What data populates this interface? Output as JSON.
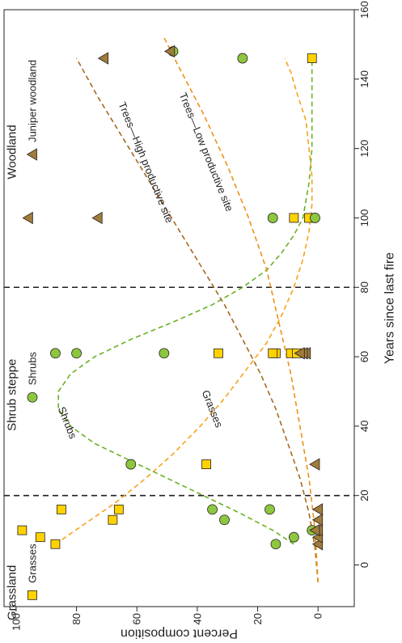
{
  "chart_data": {
    "type": "scatter",
    "xlabel": "Years since last fire",
    "ylabel": "Percent composition",
    "xlim": [
      -12,
      160
    ],
    "ylim": [
      -12,
      104
    ],
    "x_ticks": [
      "0",
      "20",
      "40",
      "60",
      "80",
      "100",
      "120",
      "140",
      "160"
    ],
    "y_ticks": [
      "0",
      "20",
      "40",
      "60",
      "80",
      "100"
    ],
    "orientation": "rotated 90 degrees counter-clockwise (x axis runs bottom-to-top along the right edge)",
    "zone_boundaries": [
      20,
      80
    ],
    "zones": [
      {
        "label": "Grassland",
        "x": -8
      },
      {
        "label": "Shrub steppe",
        "x": 49
      },
      {
        "label": "Woodland",
        "x": 119
      }
    ],
    "legend": [
      {
        "label": "Grasses",
        "marker": "square",
        "color": "#ffd200",
        "x": -8
      },
      {
        "label": "Shrubs",
        "marker": "circle",
        "color": "#8dc63f",
        "x": 49
      },
      {
        "label": "Juniper woodland",
        "marker": "triangle",
        "color": "#a07c3b",
        "x": 119
      }
    ],
    "series": [
      {
        "name": "Grasses",
        "marker": "square",
        "color": "#ffd200",
        "points": [
          [
            6,
            87
          ],
          [
            8,
            92
          ],
          [
            10,
            98
          ],
          [
            13,
            68
          ],
          [
            16,
            66
          ],
          [
            16,
            85
          ],
          [
            29,
            37
          ],
          [
            61,
            33
          ],
          [
            61,
            14
          ],
          [
            61,
            15
          ],
          [
            61,
            9
          ],
          [
            61,
            7
          ],
          [
            100,
            8
          ],
          [
            100,
            3
          ],
          [
            146,
            2
          ]
        ]
      },
      {
        "name": "Shrubs",
        "marker": "circle",
        "color": "#8dc63f",
        "points": [
          [
            6,
            14
          ],
          [
            8,
            8
          ],
          [
            10,
            2
          ],
          [
            13,
            31
          ],
          [
            16,
            35
          ],
          [
            16,
            16
          ],
          [
            29,
            62
          ],
          [
            61,
            87
          ],
          [
            61,
            80
          ],
          [
            61,
            51
          ],
          [
            100,
            15
          ],
          [
            100,
            1
          ],
          [
            146,
            25
          ],
          [
            148,
            48
          ]
        ]
      },
      {
        "name": "Juniper woodland",
        "marker": "triangle",
        "color": "#a07c3b",
        "points": [
          [
            6,
            0
          ],
          [
            8,
            0
          ],
          [
            10,
            0
          ],
          [
            10,
            1
          ],
          [
            13,
            0
          ],
          [
            16,
            0
          ],
          [
            29,
            1
          ],
          [
            61,
            4
          ],
          [
            61,
            5
          ],
          [
            61,
            6
          ],
          [
            100,
            73
          ],
          [
            100,
            96
          ],
          [
            146,
            71
          ],
          [
            148,
            49
          ]
        ]
      }
    ],
    "curves": [
      {
        "label": "Grasses",
        "color": "#f7a21b",
        "points": [
          [
            6,
            87
          ],
          [
            12,
            77
          ],
          [
            18,
            67
          ],
          [
            25,
            57
          ],
          [
            32,
            48
          ],
          [
            40,
            39
          ],
          [
            48,
            31
          ],
          [
            56,
            24
          ],
          [
            64,
            17
          ],
          [
            72,
            12
          ],
          [
            80,
            8
          ],
          [
            88,
            5
          ],
          [
            96,
            3
          ],
          [
            104,
            2
          ],
          [
            112,
            2
          ],
          [
            120,
            3
          ],
          [
            128,
            4
          ],
          [
            136,
            7
          ],
          [
            142,
            9
          ],
          [
            146,
            11
          ]
        ]
      },
      {
        "label": "Shrubs",
        "color": "#6ab023",
        "points": [
          [
            6,
            8
          ],
          [
            10,
            15
          ],
          [
            15,
            26
          ],
          [
            20,
            38
          ],
          [
            25,
            50
          ],
          [
            30,
            62
          ],
          [
            35,
            74
          ],
          [
            40,
            82
          ],
          [
            45,
            86
          ],
          [
            50,
            86
          ],
          [
            55,
            82
          ],
          [
            60,
            74
          ],
          [
            65,
            62
          ],
          [
            70,
            48
          ],
          [
            75,
            35
          ],
          [
            80,
            25
          ],
          [
            85,
            17
          ],
          [
            90,
            12
          ],
          [
            95,
            8
          ],
          [
            100,
            5
          ],
          [
            110,
            3
          ],
          [
            120,
            2
          ],
          [
            130,
            2
          ],
          [
            140,
            2
          ],
          [
            146,
            2
          ]
        ]
      },
      {
        "label": "Trees—High productive site",
        "color": "#a5691e",
        "points": [
          [
            -5,
            0
          ],
          [
            5,
            1
          ],
          [
            15,
            3
          ],
          [
            25,
            6
          ],
          [
            35,
            10
          ],
          [
            45,
            14
          ],
          [
            55,
            19
          ],
          [
            65,
            25
          ],
          [
            75,
            31
          ],
          [
            85,
            38
          ],
          [
            95,
            45
          ],
          [
            105,
            52
          ],
          [
            115,
            59
          ],
          [
            125,
            66
          ],
          [
            135,
            73
          ],
          [
            146,
            80
          ]
        ]
      },
      {
        "label": "Trees—Low productive site",
        "color": "#ef8f15",
        "points": [
          [
            -5,
            0
          ],
          [
            10,
            1
          ],
          [
            25,
            3
          ],
          [
            40,
            6
          ],
          [
            55,
            9
          ],
          [
            70,
            13
          ],
          [
            85,
            17
          ],
          [
            100,
            23
          ],
          [
            115,
            30
          ],
          [
            130,
            38
          ],
          [
            145,
            47
          ],
          [
            152,
            51
          ]
        ]
      }
    ],
    "curve_labels": [
      {
        "text": "Grasses",
        "x": 45,
        "y": 35
      },
      {
        "text": "Shrubs",
        "x": 41,
        "y": 83
      },
      {
        "text": "Trees—High productive site",
        "x": 116,
        "y": 57
      },
      {
        "text": "Trees—Low productive site",
        "x": 119,
        "y": 37
      }
    ]
  }
}
